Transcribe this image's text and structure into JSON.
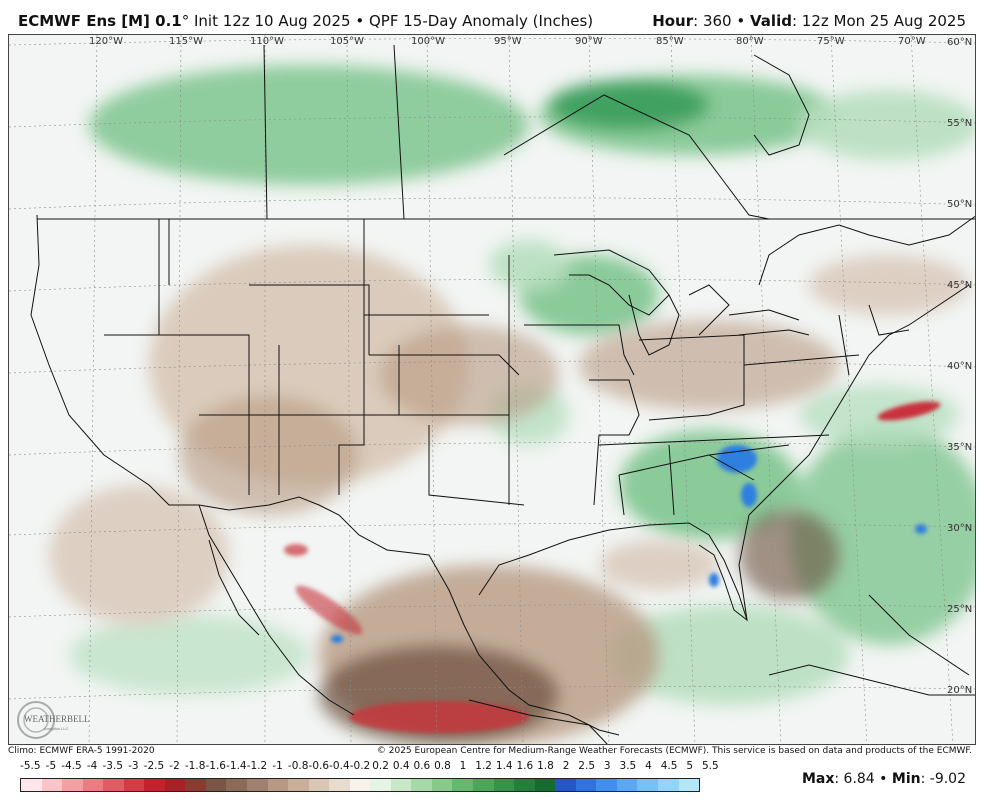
{
  "header": {
    "model": "ECMWF Ens [M] 0.1",
    "degree": "°",
    "init": "Init 12z 10 Aug 2025",
    "bullet": "•",
    "product": "QPF 15-Day Anomaly (Inches)",
    "hour_label": "Hour",
    "hour_value": "360",
    "valid_label": "Valid",
    "valid_value": "12z Mon 25 Aug 2025"
  },
  "map": {
    "longitude_labels": [
      "120°W",
      "115°W",
      "110°W",
      "105°W",
      "100°W",
      "95°W",
      "90°W",
      "85°W",
      "80°W",
      "75°W",
      "70°W"
    ],
    "latitude_labels": [
      "60°N",
      "55°N",
      "50°N",
      "45°N",
      "40°N",
      "35°N",
      "30°N",
      "25°N",
      "20°N"
    ],
    "logo_text": "WEATHERBELL",
    "logo_subtext": "Analytics LLC",
    "colors": {
      "dry_dark": "#6b4e3a",
      "dry_mid": "#b89a82",
      "dry_light": "#d8c6b6",
      "neutral": "#f2f5f3",
      "wet_light": "#b8dfc0",
      "wet_mid": "#6fbf82",
      "wet_dark": "#2f9652",
      "very_wet": "#2f7fe0",
      "very_dry": "#c8323c"
    }
  },
  "footer": {
    "climo": "Climo: ECMWF ERA-5 1991-2020",
    "copyright": "© 2025 European Centre for Medium-Range Weather Forecasts (ECMWF). This service is based on data and products of the ECMWF."
  },
  "colorbar": {
    "labels": [
      "-5.5",
      "-5",
      "-4.5",
      "-4",
      "-3.5",
      "-3",
      "-2.5",
      "-2",
      "-1.8",
      "-1.6",
      "-1.4",
      "-1.2",
      "-1",
      "-0.8",
      "-0.6",
      "-0.4",
      "-0.2",
      "0.2",
      "0.4",
      "0.6",
      "0.8",
      "1",
      "1.2",
      "1.4",
      "1.6",
      "1.8",
      "2",
      "2.5",
      "3",
      "3.5",
      "4",
      "4.5",
      "5",
      "5.5"
    ],
    "colors": [
      "#ffe6ea",
      "#fbc4c8",
      "#f59ea4",
      "#ee7b82",
      "#e45a62",
      "#d63a44",
      "#c5212d",
      "#a81f26",
      "#8a3a2e",
      "#7a5444",
      "#8c6a58",
      "#a08070",
      "#b69884",
      "#c9ae9a",
      "#dac6b5",
      "#e8dccf",
      "#f7f2ec",
      "#e6f4e6",
      "#c7e7c7",
      "#a6d9a8",
      "#86c98a",
      "#66b86e",
      "#4aa659",
      "#359347",
      "#23803a",
      "#156c2f",
      "#2357c8",
      "#2f73e0",
      "#3f8ff0",
      "#58a8f5",
      "#74c0f7",
      "#93d5f8",
      "#b3e6fa"
    ]
  },
  "stats": {
    "max_label": "Max",
    "max_value": "6.84",
    "min_label": "Min",
    "min_value": "-9.02",
    "bullet": "•"
  }
}
